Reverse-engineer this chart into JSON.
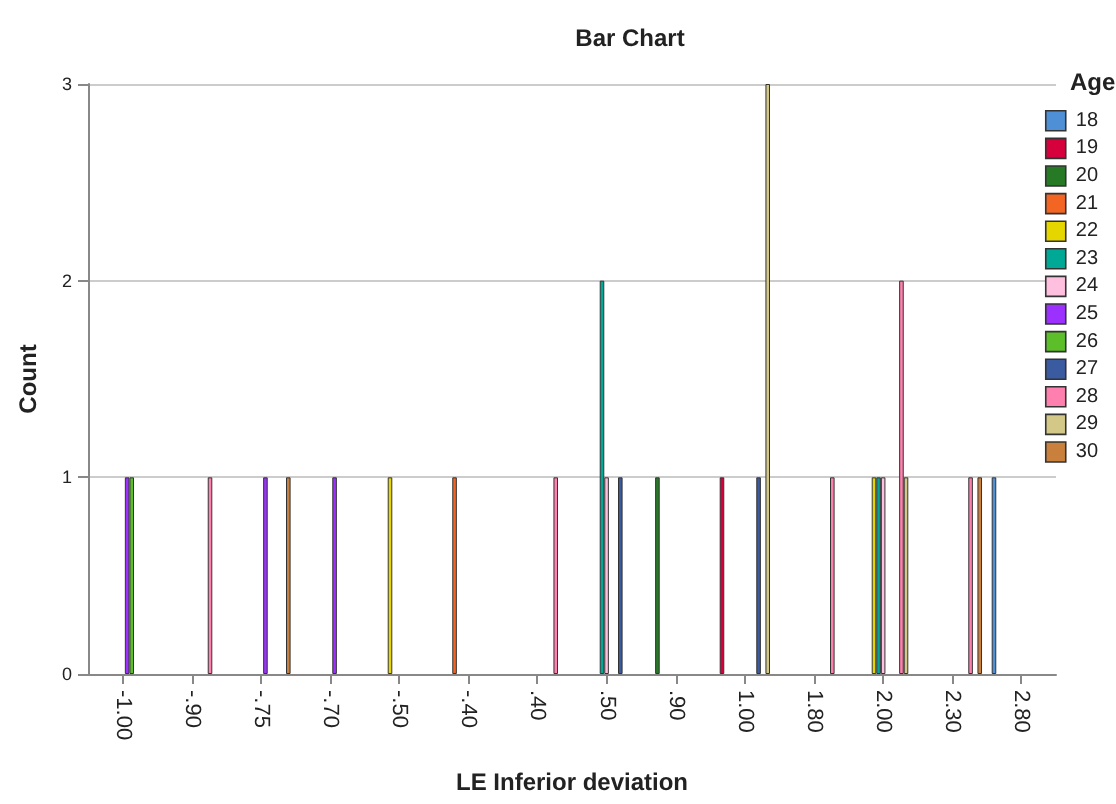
{
  "chart_data": {
    "type": "bar",
    "title": "Bar Chart",
    "xlabel": "LE Inferior deviation",
    "ylabel": "Count",
    "legend_title": "Age",
    "categories": [
      "-1.00",
      "-.90",
      "-.75",
      "-.70",
      "-.50",
      "-.40",
      ".40",
      ".50",
      ".90",
      "1.00",
      "1.80",
      "2.00",
      "2.30",
      "2.80"
    ],
    "series": [
      {
        "name": "18",
        "color": "#4f8fd6",
        "values": [
          null,
          null,
          null,
          null,
          null,
          null,
          null,
          null,
          null,
          null,
          null,
          null,
          null,
          1
        ]
      },
      {
        "name": "19",
        "color": "#d6003c",
        "values": [
          null,
          null,
          null,
          null,
          null,
          null,
          null,
          null,
          null,
          1,
          null,
          null,
          null,
          null
        ]
      },
      {
        "name": "20",
        "color": "#267a26",
        "values": [
          null,
          null,
          null,
          null,
          null,
          null,
          null,
          null,
          1,
          null,
          null,
          null,
          null,
          null
        ]
      },
      {
        "name": "21",
        "color": "#f26522",
        "values": [
          null,
          null,
          null,
          null,
          null,
          1,
          null,
          null,
          null,
          null,
          null,
          null,
          null,
          null
        ]
      },
      {
        "name": "22",
        "color": "#e6d600",
        "values": [
          null,
          null,
          null,
          null,
          1,
          null,
          null,
          null,
          null,
          null,
          null,
          1,
          null,
          null
        ]
      },
      {
        "name": "23",
        "color": "#00a896",
        "values": [
          null,
          null,
          null,
          null,
          null,
          null,
          null,
          2,
          null,
          null,
          null,
          1,
          null,
          null
        ]
      },
      {
        "name": "24",
        "color": "#ffc0e0",
        "values": [
          null,
          null,
          null,
          null,
          null,
          null,
          null,
          1,
          null,
          null,
          null,
          1,
          null,
          null
        ]
      },
      {
        "name": "25",
        "color": "#9b30ff",
        "values": [
          1,
          null,
          1,
          1,
          null,
          null,
          null,
          null,
          null,
          null,
          null,
          null,
          null,
          null
        ]
      },
      {
        "name": "26",
        "color": "#5cbf2a",
        "values": [
          1,
          null,
          null,
          null,
          null,
          null,
          null,
          null,
          null,
          null,
          null,
          null,
          null,
          null
        ]
      },
      {
        "name": "27",
        "color": "#3a5ba0",
        "values": [
          null,
          null,
          null,
          null,
          null,
          null,
          null,
          1,
          null,
          1,
          null,
          null,
          null,
          null
        ]
      },
      {
        "name": "28",
        "color": "#ff7fae",
        "values": [
          null,
          1,
          null,
          null,
          null,
          null,
          1,
          null,
          null,
          null,
          1,
          2,
          1,
          null
        ]
      },
      {
        "name": "29",
        "color": "#d4c888",
        "values": [
          null,
          null,
          null,
          null,
          null,
          null,
          null,
          null,
          null,
          3,
          null,
          1,
          null,
          null
        ]
      },
      {
        "name": "30",
        "color": "#c8803c",
        "values": [
          null,
          null,
          1,
          null,
          null,
          null,
          null,
          null,
          null,
          null,
          null,
          null,
          1,
          null
        ]
      }
    ],
    "ylim": [
      0,
      3
    ],
    "yticks": [
      0,
      1,
      2,
      3
    ],
    "grid": "y",
    "legend": "right"
  }
}
